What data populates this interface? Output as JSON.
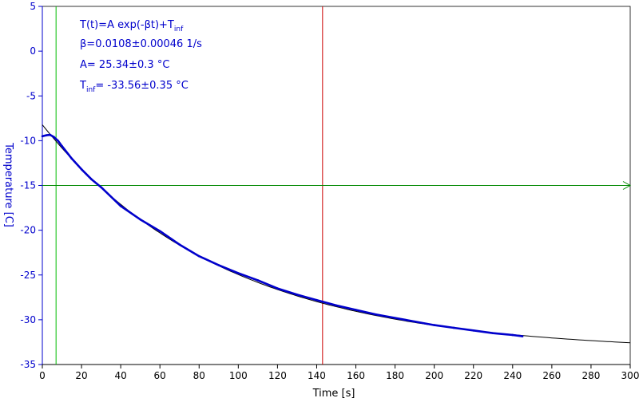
{
  "chart_data": {
    "type": "scatter",
    "xlabel": "Time [s]",
    "ylabel": "Temperature [C]",
    "xlim": [
      0,
      300
    ],
    "ylim": [
      -35,
      5
    ],
    "x_ticks": [
      0,
      20,
      40,
      60,
      80,
      100,
      120,
      140,
      160,
      180,
      200,
      220,
      240,
      260,
      280,
      300
    ],
    "y_ticks": [
      5,
      0,
      -5,
      -10,
      -15,
      -20,
      -25,
      -30,
      -35
    ],
    "grid": false,
    "legend": "none",
    "colors": {
      "axis": "#0000cc",
      "data": "#0000cc",
      "fit": "#000000",
      "green_cursor": "#00bb00",
      "red_cursor": "#cc0000",
      "h_cursor": "#008800"
    },
    "series": [
      {
        "kind": "measured",
        "points": [
          [
            0,
            -9.5
          ],
          [
            2,
            -9.4
          ],
          [
            4,
            -9.35
          ],
          [
            6,
            -9.6
          ],
          [
            8,
            -10.0
          ],
          [
            10,
            -10.6
          ],
          [
            15,
            -12.0
          ],
          [
            20,
            -13.2
          ],
          [
            25,
            -14.3
          ],
          [
            30,
            -15.2
          ],
          [
            40,
            -17.3
          ],
          [
            50,
            -18.8
          ],
          [
            60,
            -20.1
          ],
          [
            70,
            -21.6
          ],
          [
            80,
            -22.9
          ],
          [
            90,
            -23.9
          ],
          [
            100,
            -24.8
          ],
          [
            110,
            -25.6
          ],
          [
            120,
            -26.5
          ],
          [
            130,
            -27.2
          ],
          [
            140,
            -27.8
          ],
          [
            150,
            -28.4
          ],
          [
            160,
            -28.9
          ],
          [
            170,
            -29.4
          ],
          [
            180,
            -29.8
          ],
          [
            190,
            -30.2
          ],
          [
            200,
            -30.6
          ],
          [
            210,
            -30.9
          ],
          [
            220,
            -31.2
          ],
          [
            230,
            -31.5
          ],
          [
            240,
            -31.7
          ],
          [
            245,
            -31.85
          ]
        ]
      },
      {
        "kind": "fit",
        "model": {
          "A": 25.34,
          "beta": 0.0108,
          "T_inf": -33.56
        },
        "x_range": [
          0,
          300
        ]
      }
    ],
    "cursors": {
      "vertical_green_x": 7,
      "vertical_red_x": 143,
      "horizontal_y": -15
    },
    "annotations": {
      "formula_main": "T(t)=A exp(-βt)+T",
      "formula_sub": "inf",
      "beta_line": "β=0.0108±0.00046 1/s",
      "a_line": "A= 25.34±0.3 °C",
      "tinf_main": "T",
      "tinf_sub": "inf",
      "tinf_value": "= -33.56±0.35 °C"
    }
  }
}
